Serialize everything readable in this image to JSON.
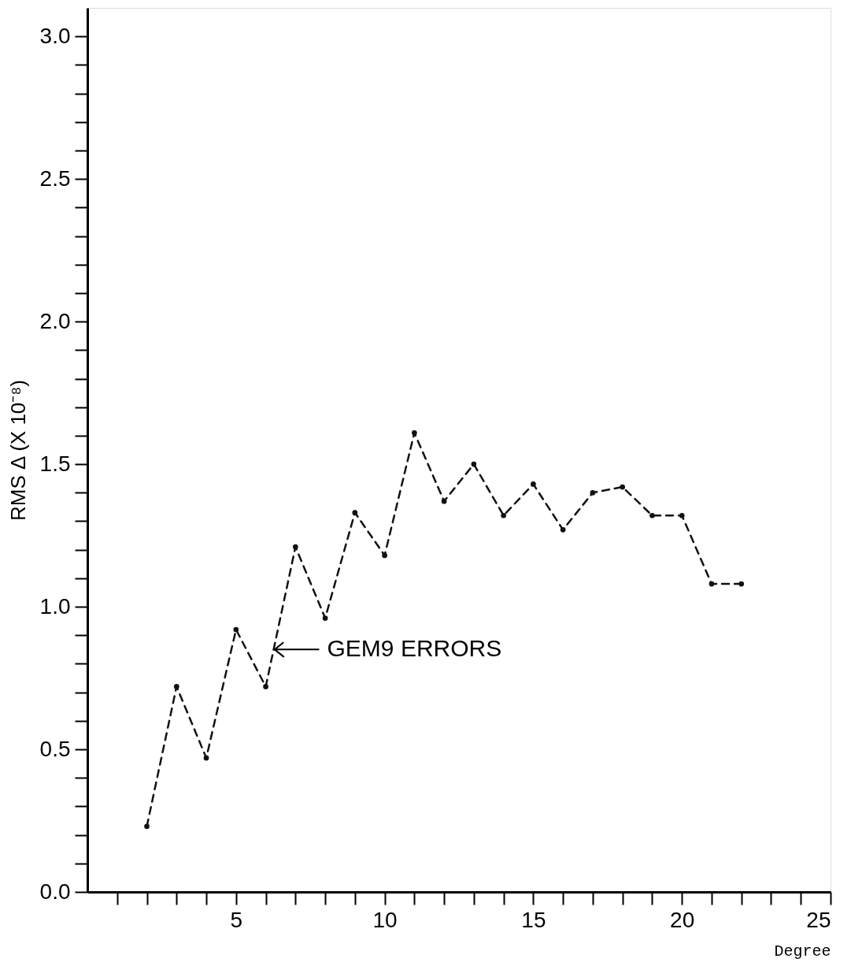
{
  "chart_data": {
    "type": "line",
    "xlabel": "Degree",
    "ylabel": "RMS Δ (X 10⁻⁸)",
    "x": [
      2,
      3,
      4,
      5,
      6,
      7,
      8,
      9,
      10,
      11,
      12,
      13,
      14,
      15,
      16,
      17,
      18,
      19,
      20,
      21,
      22
    ],
    "values": [
      0.23,
      0.72,
      0.47,
      0.92,
      0.72,
      1.21,
      0.96,
      1.33,
      1.18,
      1.61,
      1.37,
      1.5,
      1.32,
      1.43,
      1.27,
      1.4,
      1.42,
      1.32,
      1.32,
      1.08,
      1.08
    ],
    "color": "#111111",
    "marker": "circle",
    "line_style": "dashed",
    "grid": false,
    "xlim": [
      0,
      25
    ],
    "ylim": [
      0,
      3.1
    ],
    "xticks": [
      {
        "value": 1,
        "label": null
      },
      {
        "value": 2,
        "label": null
      },
      {
        "value": 3,
        "label": null
      },
      {
        "value": 4,
        "label": null
      },
      5,
      {
        "value": 6,
        "label": null
      },
      {
        "value": 7,
        "label": null
      },
      {
        "value": 8,
        "label": null
      },
      {
        "value": 9,
        "label": null
      },
      10,
      {
        "value": 11,
        "label": null
      },
      {
        "value": 12,
        "label": null
      },
      {
        "value": 13,
        "label": null
      },
      {
        "value": 14,
        "label": null
      },
      15,
      {
        "value": 16,
        "label": null
      },
      {
        "value": 17,
        "label": null
      },
      {
        "value": 18,
        "label": null
      },
      {
        "value": 19,
        "label": null
      },
      20,
      {
        "value": 21,
        "label": null
      },
      {
        "value": 22,
        "label": null
      },
      {
        "value": 23,
        "label": null
      },
      {
        "value": 24,
        "label": null
      },
      25
    ],
    "yticks": [
      {
        "value": 0,
        "label": "0.0"
      },
      {
        "value": 0.1,
        "label": null
      },
      {
        "value": 0.2,
        "label": null
      },
      {
        "value": 0.3,
        "label": null
      },
      {
        "value": 0.4,
        "label": null
      },
      0.5,
      {
        "value": 0.6,
        "label": null
      },
      {
        "value": 0.7,
        "label": null
      },
      {
        "value": 0.8,
        "label": null
      },
      {
        "value": 0.9,
        "label": null
      },
      {
        "value": 1,
        "label": "1.0"
      },
      {
        "value": 1.1,
        "label": null
      },
      {
        "value": 1.2,
        "label": null
      },
      {
        "value": 1.3,
        "label": null
      },
      {
        "value": 1.4,
        "label": null
      },
      1.5,
      {
        "value": 1.6,
        "label": null
      },
      {
        "value": 1.7,
        "label": null
      },
      {
        "value": 1.8,
        "label": null
      },
      {
        "value": 1.9,
        "label": null
      },
      {
        "value": 2,
        "label": "2.0"
      },
      {
        "value": 2.1,
        "label": null
      },
      {
        "value": 2.2,
        "label": null
      },
      {
        "value": 2.3,
        "label": null
      },
      {
        "value": 2.4,
        "label": null
      },
      2.5,
      {
        "value": 2.6,
        "label": null
      },
      {
        "value": 2.7,
        "label": null
      },
      {
        "value": 2.8,
        "label": null
      },
      {
        "value": 2.9,
        "label": null
      },
      {
        "value": 3,
        "label": "3.0"
      }
    ],
    "annotations": [
      {
        "text": "GEM9 ERRORS",
        "x": 6.3,
        "y": 0.85
      }
    ]
  }
}
